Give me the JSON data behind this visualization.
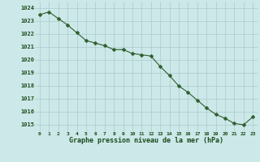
{
  "x": [
    0,
    1,
    2,
    3,
    4,
    5,
    6,
    7,
    8,
    9,
    10,
    11,
    12,
    13,
    14,
    15,
    16,
    17,
    18,
    19,
    20,
    21,
    22,
    23
  ],
  "y": [
    1023.5,
    1023.7,
    1023.2,
    1022.7,
    1022.1,
    1021.5,
    1021.3,
    1021.1,
    1020.8,
    1020.8,
    1020.5,
    1020.4,
    1020.3,
    1019.5,
    1018.8,
    1018.0,
    1017.5,
    1016.9,
    1016.3,
    1015.8,
    1015.5,
    1015.1,
    1015.0,
    1015.6
  ],
  "ylim": [
    1014.5,
    1024.5
  ],
  "xlim": [
    -0.5,
    23.5
  ],
  "yticks": [
    1015,
    1016,
    1017,
    1018,
    1019,
    1020,
    1021,
    1022,
    1023,
    1024
  ],
  "xticks": [
    0,
    1,
    2,
    3,
    4,
    5,
    6,
    7,
    8,
    9,
    10,
    11,
    12,
    13,
    14,
    15,
    16,
    17,
    18,
    19,
    20,
    21,
    22,
    23
  ],
  "line_color": "#2d5e2d",
  "marker_color": "#2d5e2d",
  "bg_color": "#cce8e8",
  "grid_color": "#aacaca",
  "xlabel": "Graphe pression niveau de la mer (hPa)",
  "xlabel_color": "#1a4a1a",
  "tick_color": "#1a4a1a",
  "marker": "D",
  "marker_size": 2.5,
  "line_width": 0.8
}
